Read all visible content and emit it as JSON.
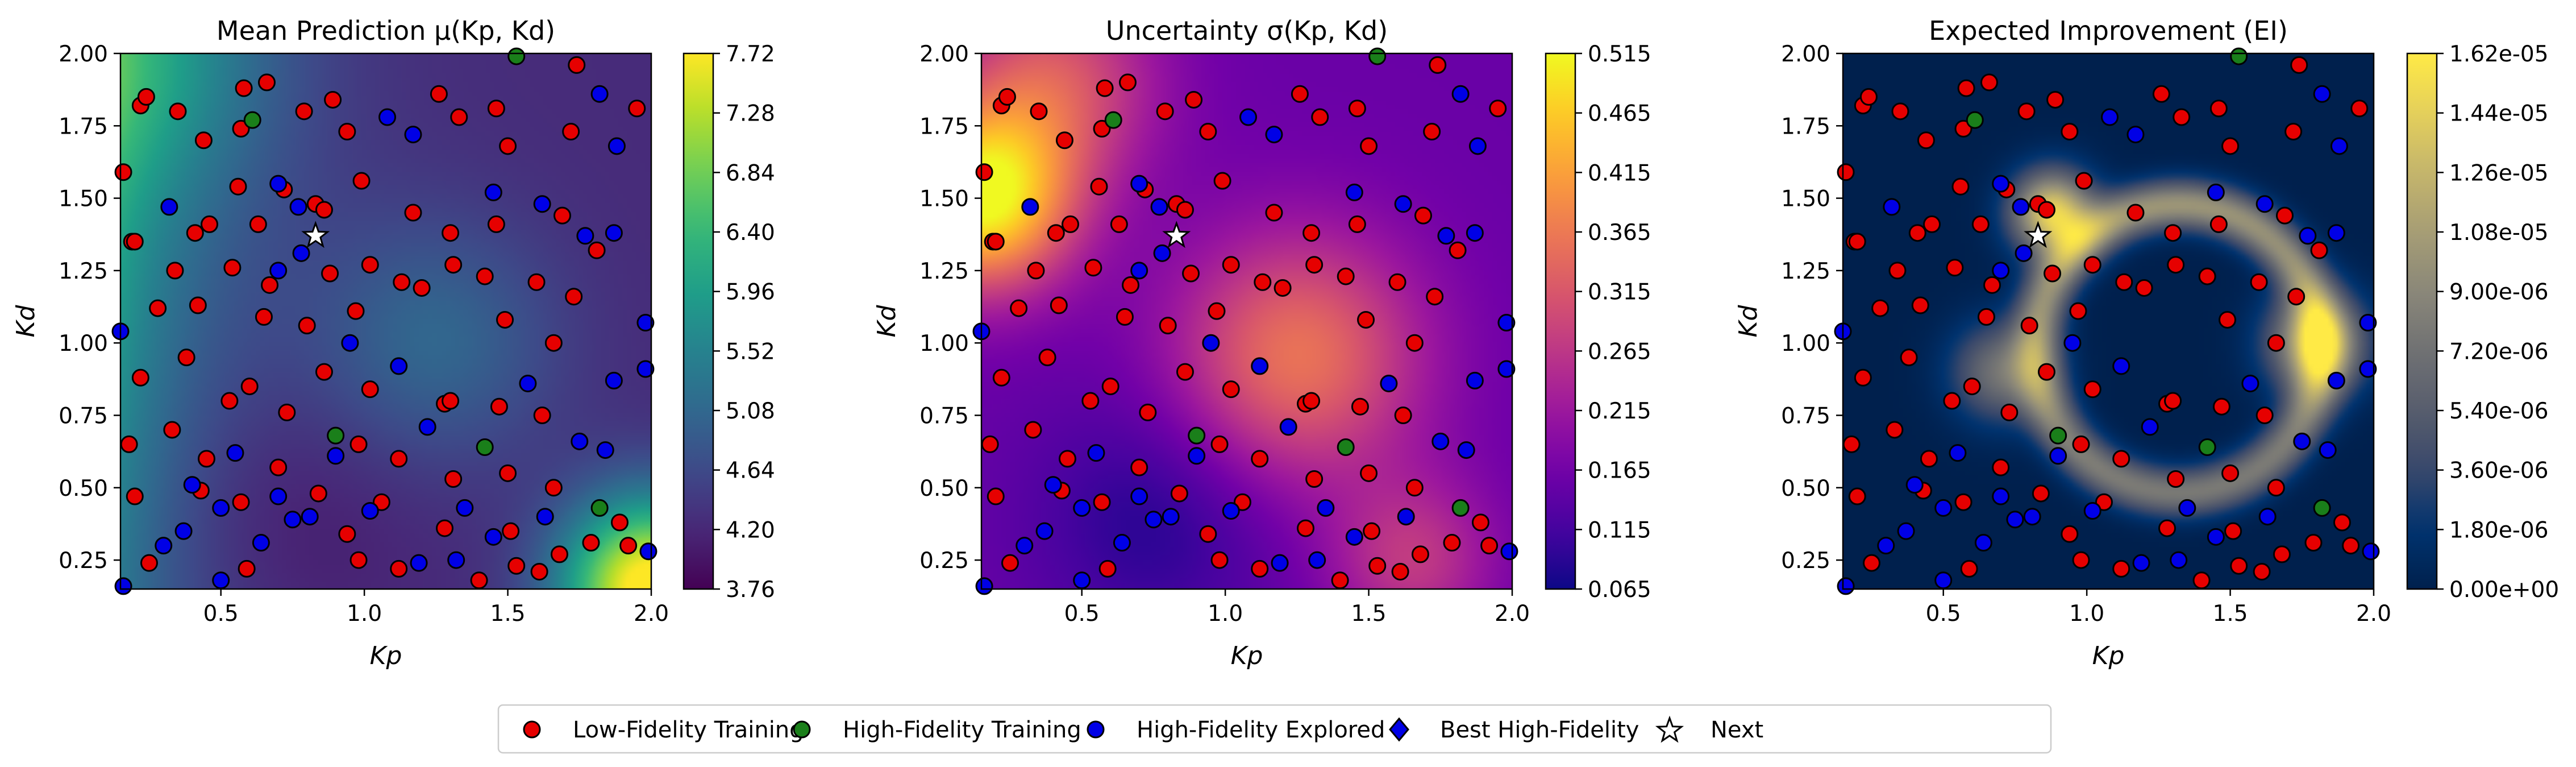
{
  "chart_data": [
    {
      "type": "heatmap",
      "title": "Mean Prediction μ(Kp, Kd)",
      "xlabel": "Kp",
      "ylabel": "Kd",
      "xlim": [
        0.15,
        2.0
      ],
      "ylim": [
        0.15,
        2.0
      ],
      "xticks": [
        "0.5",
        "1.0",
        "1.5",
        "2.0"
      ],
      "yticks": [
        "0.25",
        "0.50",
        "0.75",
        "1.00",
        "1.25",
        "1.50",
        "1.75",
        "2.00"
      ],
      "colormap": "viridis",
      "colorbar_range": [
        3.76,
        7.72
      ],
      "colorbar_ticks": [
        "3.76",
        "4.20",
        "4.64",
        "5.08",
        "5.52",
        "5.96",
        "6.40",
        "6.84",
        "7.28",
        "7.72"
      ]
    },
    {
      "type": "heatmap",
      "title": "Uncertainty σ(Kp, Kd)",
      "xlabel": "Kp",
      "ylabel": "Kd",
      "xlim": [
        0.15,
        2.0
      ],
      "ylim": [
        0.15,
        2.0
      ],
      "xticks": [
        "0.5",
        "1.0",
        "1.5",
        "2.0"
      ],
      "yticks": [
        "0.25",
        "0.50",
        "0.75",
        "1.00",
        "1.25",
        "1.50",
        "1.75",
        "2.00"
      ],
      "colormap": "plasma",
      "colorbar_range": [
        0.065,
        0.515
      ],
      "colorbar_ticks": [
        "0.065",
        "0.115",
        "0.165",
        "0.215",
        "0.265",
        "0.315",
        "0.365",
        "0.415",
        "0.465",
        "0.515"
      ]
    },
    {
      "type": "heatmap",
      "title": "Expected Improvement (EI)",
      "xlabel": "Kp",
      "ylabel": "Kd",
      "xlim": [
        0.15,
        2.0
      ],
      "ylim": [
        0.15,
        2.0
      ],
      "xticks": [
        "0.5",
        "1.0",
        "1.5",
        "2.0"
      ],
      "yticks": [
        "0.25",
        "0.50",
        "0.75",
        "1.00",
        "1.25",
        "1.50",
        "1.75",
        "2.00"
      ],
      "colormap": "cividis",
      "colorbar_range": [
        0,
        1.62e-05
      ],
      "colorbar_ticks": [
        "0.00e+00",
        "1.80e-06",
        "3.60e-06",
        "5.40e-06",
        "7.20e-06",
        "9.00e-06",
        "1.08e-05",
        "1.26e-05",
        "1.44e-05",
        "1.62e-05"
      ]
    }
  ],
  "points": {
    "next": [
      0.83,
      1.37
    ],
    "high_fidelity_training": [
      [
        1.53,
        1.99
      ],
      [
        0.61,
        1.77
      ],
      [
        0.9,
        0.68
      ],
      [
        1.42,
        0.64
      ],
      [
        1.82,
        0.43
      ]
    ],
    "high_fidelity_explored": [
      [
        0.32,
        1.47
      ],
      [
        0.7,
        1.55
      ],
      [
        0.77,
        1.47
      ],
      [
        0.7,
        1.25
      ],
      [
        0.78,
        1.31
      ],
      [
        1.08,
        1.78
      ],
      [
        1.17,
        1.72
      ],
      [
        1.45,
        1.52
      ],
      [
        1.62,
        1.48
      ],
      [
        1.82,
        1.86
      ],
      [
        1.88,
        1.68
      ],
      [
        1.77,
        1.37
      ],
      [
        1.87,
        1.38
      ],
      [
        1.98,
        1.07
      ],
      [
        0.15,
        1.04
      ],
      [
        0.95,
        1.0
      ],
      [
        1.12,
        0.92
      ],
      [
        1.57,
        0.86
      ],
      [
        1.87,
        0.87
      ],
      [
        1.98,
        0.91
      ],
      [
        0.55,
        0.62
      ],
      [
        0.9,
        0.61
      ],
      [
        1.22,
        0.71
      ],
      [
        1.75,
        0.66
      ],
      [
        1.84,
        0.63
      ],
      [
        0.4,
        0.51
      ],
      [
        0.5,
        0.43
      ],
      [
        0.7,
        0.47
      ],
      [
        0.75,
        0.39
      ],
      [
        0.64,
        0.31
      ],
      [
        0.81,
        0.4
      ],
      [
        0.3,
        0.3
      ],
      [
        0.37,
        0.35
      ],
      [
        1.02,
        0.42
      ],
      [
        1.35,
        0.43
      ],
      [
        1.45,
        0.33
      ],
      [
        1.63,
        0.4
      ],
      [
        1.19,
        0.24
      ],
      [
        1.32,
        0.25
      ],
      [
        0.16,
        0.16
      ],
      [
        1.99,
        0.28
      ],
      [
        0.5,
        0.18
      ]
    ],
    "low_fidelity_training": [
      [
        0.22,
        1.82
      ],
      [
        0.24,
        1.85
      ],
      [
        0.35,
        1.8
      ],
      [
        0.44,
        1.7
      ],
      [
        0.57,
        1.74
      ],
      [
        0.58,
        1.88
      ],
      [
        0.66,
        1.9
      ],
      [
        0.79,
        1.8
      ],
      [
        0.89,
        1.84
      ],
      [
        0.94,
        1.73
      ],
      [
        1.26,
        1.86
      ],
      [
        1.33,
        1.78
      ],
      [
        1.46,
        1.81
      ],
      [
        1.5,
        1.68
      ],
      [
        1.72,
        1.73
      ],
      [
        1.74,
        1.96
      ],
      [
        1.95,
        1.81
      ],
      [
        0.16,
        1.59
      ],
      [
        0.41,
        1.38
      ],
      [
        0.46,
        1.41
      ],
      [
        0.56,
        1.54
      ],
      [
        0.63,
        1.41
      ],
      [
        0.72,
        1.53
      ],
      [
        0.83,
        1.48
      ],
      [
        0.86,
        1.46
      ],
      [
        0.99,
        1.56
      ],
      [
        1.17,
        1.45
      ],
      [
        1.3,
        1.38
      ],
      [
        1.46,
        1.41
      ],
      [
        1.69,
        1.44
      ],
      [
        1.81,
        1.32
      ],
      [
        0.19,
        1.35
      ],
      [
        0.2,
        1.35
      ],
      [
        0.34,
        1.25
      ],
      [
        0.54,
        1.26
      ],
      [
        0.67,
        1.2
      ],
      [
        0.88,
        1.24
      ],
      [
        1.02,
        1.27
      ],
      [
        1.13,
        1.21
      ],
      [
        1.31,
        1.27
      ],
      [
        1.42,
        1.23
      ],
      [
        1.6,
        1.21
      ],
      [
        1.73,
        1.16
      ],
      [
        0.28,
        1.12
      ],
      [
        0.42,
        1.13
      ],
      [
        0.65,
        1.09
      ],
      [
        0.8,
        1.06
      ],
      [
        0.97,
        1.11
      ],
      [
        1.2,
        1.19
      ],
      [
        1.49,
        1.08
      ],
      [
        1.66,
        1.0
      ],
      [
        0.22,
        0.88
      ],
      [
        0.38,
        0.95
      ],
      [
        0.53,
        0.8
      ],
      [
        0.6,
        0.85
      ],
      [
        0.73,
        0.76
      ],
      [
        0.86,
        0.9
      ],
      [
        1.02,
        0.84
      ],
      [
        1.28,
        0.79
      ],
      [
        1.3,
        0.8
      ],
      [
        1.47,
        0.78
      ],
      [
        1.62,
        0.75
      ],
      [
        0.18,
        0.65
      ],
      [
        0.33,
        0.7
      ],
      [
        0.45,
        0.6
      ],
      [
        0.7,
        0.57
      ],
      [
        0.98,
        0.65
      ],
      [
        1.12,
        0.6
      ],
      [
        1.31,
        0.53
      ],
      [
        1.5,
        0.55
      ],
      [
        1.66,
        0.5
      ],
      [
        0.2,
        0.47
      ],
      [
        0.43,
        0.49
      ],
      [
        0.57,
        0.45
      ],
      [
        0.84,
        0.48
      ],
      [
        0.94,
        0.34
      ],
      [
        1.06,
        0.45
      ],
      [
        1.28,
        0.36
      ],
      [
        1.51,
        0.35
      ],
      [
        1.68,
        0.27
      ],
      [
        0.25,
        0.24
      ],
      [
        0.59,
        0.22
      ],
      [
        0.98,
        0.25
      ],
      [
        1.12,
        0.22
      ],
      [
        1.4,
        0.18
      ],
      [
        1.53,
        0.23
      ],
      [
        1.61,
        0.21
      ],
      [
        1.79,
        0.31
      ],
      [
        1.89,
        0.38
      ],
      [
        1.92,
        0.3
      ]
    ]
  },
  "legend": {
    "placement": "bottom-center",
    "items": [
      {
        "label": "Low-Fidelity Training",
        "marker": "circle",
        "color": "#e60000"
      },
      {
        "label": "High-Fidelity Training",
        "marker": "circle",
        "color": "#1a7f1a"
      },
      {
        "label": "High-Fidelity Explored",
        "marker": "circle",
        "color": "#0000e6"
      },
      {
        "label": "Best High-Fidelity",
        "marker": "diamond",
        "color": "#0000e6"
      },
      {
        "label": "Next",
        "marker": "star",
        "color": "#ffffff"
      }
    ]
  }
}
